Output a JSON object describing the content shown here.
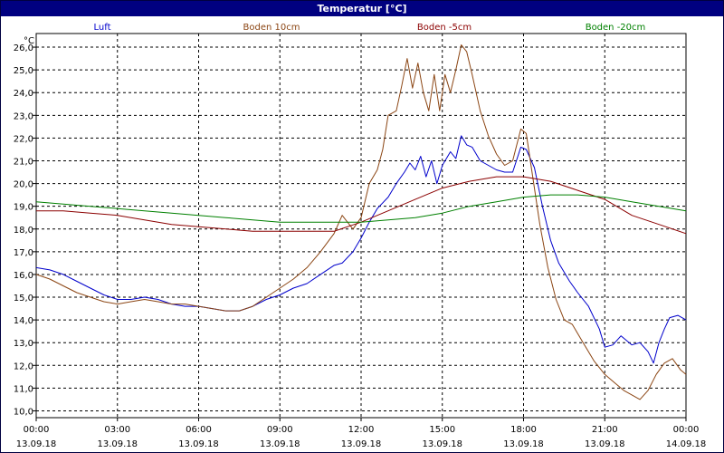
{
  "window": {
    "title": "Temperatur [°C]"
  },
  "chart_data": {
    "type": "line",
    "title": "Temperatur [°C]",
    "ylabel": "°C",
    "xlabel": "",
    "ylim": [
      9.7,
      26.6
    ],
    "xlim": [
      0,
      24
    ],
    "grid": true,
    "y_ticks": [
      10.0,
      11.0,
      12.0,
      13.0,
      14.0,
      15.0,
      16.0,
      17.0,
      18.0,
      19.0,
      20.0,
      21.0,
      22.0,
      23.0,
      24.0,
      25.0,
      26.0
    ],
    "y_tick_labels": [
      "10,0",
      "11,0",
      "12,0",
      "13,0",
      "14,0",
      "15,0",
      "16,0",
      "17,0",
      "18,0",
      "19,0",
      "20,0",
      "21,0",
      "22,0",
      "23,0",
      "24,0",
      "25,0",
      "26,0"
    ],
    "x_ticks": [
      0,
      3,
      6,
      9,
      12,
      15,
      18,
      21,
      24
    ],
    "x_tick_labels": [
      {
        "time": "00:00",
        "date": "13.09.18"
      },
      {
        "time": "03:00",
        "date": "13.09.18"
      },
      {
        "time": "06:00",
        "date": "13.09.18"
      },
      {
        "time": "09:00",
        "date": "13.09.18"
      },
      {
        "time": "12:00",
        "date": "13.09.18"
      },
      {
        "time": "15:00",
        "date": "13.09.18"
      },
      {
        "time": "18:00",
        "date": "13.09.18"
      },
      {
        "time": "21:00",
        "date": "13.09.18"
      },
      {
        "time": "00:00",
        "date": "14.09.18"
      }
    ],
    "legend_position": "top",
    "series": [
      {
        "name": "Luft",
        "color": "#0000cc",
        "points": [
          [
            0,
            16.3
          ],
          [
            0.5,
            16.2
          ],
          [
            1,
            16.0
          ],
          [
            1.5,
            15.7
          ],
          [
            2,
            15.4
          ],
          [
            2.5,
            15.1
          ],
          [
            3,
            14.9
          ],
          [
            3.5,
            14.9
          ],
          [
            4,
            15.0
          ],
          [
            4.5,
            14.9
          ],
          [
            5,
            14.7
          ],
          [
            5.5,
            14.6
          ],
          [
            6,
            14.6
          ],
          [
            6.5,
            14.5
          ],
          [
            7,
            14.4
          ],
          [
            7.5,
            14.4
          ],
          [
            8,
            14.6
          ],
          [
            8.5,
            14.9
          ],
          [
            9,
            15.1
          ],
          [
            9.5,
            15.4
          ],
          [
            10,
            15.6
          ],
          [
            10.5,
            16.0
          ],
          [
            11,
            16.4
          ],
          [
            11.3,
            16.5
          ],
          [
            11.7,
            17.0
          ],
          [
            12,
            17.6
          ],
          [
            12.3,
            18.3
          ],
          [
            12.6,
            18.9
          ],
          [
            13,
            19.4
          ],
          [
            13.3,
            20.0
          ],
          [
            13.6,
            20.5
          ],
          [
            13.8,
            20.9
          ],
          [
            14,
            20.6
          ],
          [
            14.2,
            21.2
          ],
          [
            14.4,
            20.3
          ],
          [
            14.6,
            21.0
          ],
          [
            14.8,
            20.0
          ],
          [
            15,
            20.8
          ],
          [
            15.3,
            21.4
          ],
          [
            15.5,
            21.1
          ],
          [
            15.7,
            22.1
          ],
          [
            15.9,
            21.7
          ],
          [
            16.1,
            21.6
          ],
          [
            16.4,
            21.0
          ],
          [
            16.7,
            20.8
          ],
          [
            17,
            20.6
          ],
          [
            17.3,
            20.5
          ],
          [
            17.6,
            20.5
          ],
          [
            17.9,
            21.6
          ],
          [
            18.1,
            21.5
          ],
          [
            18.4,
            20.7
          ],
          [
            18.7,
            19.0
          ],
          [
            19,
            17.5
          ],
          [
            19.3,
            16.5
          ],
          [
            19.7,
            15.7
          ],
          [
            20,
            15.2
          ],
          [
            20.4,
            14.6
          ],
          [
            20.8,
            13.6
          ],
          [
            21,
            12.8
          ],
          [
            21.3,
            12.9
          ],
          [
            21.6,
            13.3
          ],
          [
            22,
            12.9
          ],
          [
            22.3,
            13.0
          ],
          [
            22.6,
            12.6
          ],
          [
            22.8,
            12.1
          ],
          [
            23,
            13.0
          ],
          [
            23.2,
            13.6
          ],
          [
            23.4,
            14.1
          ],
          [
            23.7,
            14.2
          ],
          [
            24,
            14.0
          ]
        ]
      },
      {
        "name": "Boden 10cm",
        "color": "#8b4513",
        "points": [
          [
            0,
            16.0
          ],
          [
            0.5,
            15.8
          ],
          [
            1,
            15.5
          ],
          [
            1.5,
            15.2
          ],
          [
            2,
            15.0
          ],
          [
            2.5,
            14.8
          ],
          [
            3,
            14.7
          ],
          [
            3.5,
            14.8
          ],
          [
            4,
            14.9
          ],
          [
            4.5,
            14.8
          ],
          [
            5,
            14.7
          ],
          [
            5.5,
            14.7
          ],
          [
            6,
            14.6
          ],
          [
            6.5,
            14.5
          ],
          [
            7,
            14.4
          ],
          [
            7.5,
            14.4
          ],
          [
            8,
            14.6
          ],
          [
            8.5,
            15.0
          ],
          [
            9,
            15.4
          ],
          [
            9.5,
            15.8
          ],
          [
            10,
            16.3
          ],
          [
            10.5,
            17.0
          ],
          [
            11,
            17.8
          ],
          [
            11.3,
            18.6
          ],
          [
            11.7,
            18.0
          ],
          [
            12,
            18.5
          ],
          [
            12.3,
            20.0
          ],
          [
            12.6,
            20.6
          ],
          [
            12.8,
            21.5
          ],
          [
            13,
            23.0
          ],
          [
            13.3,
            23.2
          ],
          [
            13.5,
            24.3
          ],
          [
            13.7,
            25.5
          ],
          [
            13.9,
            24.2
          ],
          [
            14.1,
            25.3
          ],
          [
            14.3,
            24.0
          ],
          [
            14.5,
            23.2
          ],
          [
            14.7,
            24.8
          ],
          [
            14.9,
            23.2
          ],
          [
            15.1,
            24.8
          ],
          [
            15.3,
            24.0
          ],
          [
            15.5,
            25.0
          ],
          [
            15.7,
            26.1
          ],
          [
            15.9,
            25.8
          ],
          [
            16.1,
            24.8
          ],
          [
            16.4,
            23.2
          ],
          [
            16.7,
            22.1
          ],
          [
            17,
            21.3
          ],
          [
            17.3,
            20.8
          ],
          [
            17.6,
            21.0
          ],
          [
            17.9,
            22.4
          ],
          [
            18.1,
            22.2
          ],
          [
            18.3,
            20.6
          ],
          [
            18.6,
            18.2
          ],
          [
            18.9,
            16.3
          ],
          [
            19.2,
            14.9
          ],
          [
            19.5,
            14.0
          ],
          [
            19.8,
            13.8
          ],
          [
            20.2,
            13.0
          ],
          [
            20.6,
            12.2
          ],
          [
            21,
            11.6
          ],
          [
            21.4,
            11.2
          ],
          [
            21.7,
            10.9
          ],
          [
            22,
            10.7
          ],
          [
            22.3,
            10.5
          ],
          [
            22.6,
            10.9
          ],
          [
            22.9,
            11.6
          ],
          [
            23.2,
            12.1
          ],
          [
            23.5,
            12.3
          ],
          [
            23.8,
            11.8
          ],
          [
            24,
            11.6
          ]
        ]
      },
      {
        "name": "Boden -5cm",
        "color": "#8b0000",
        "points": [
          [
            0,
            18.8
          ],
          [
            1,
            18.8
          ],
          [
            2,
            18.7
          ],
          [
            3,
            18.6
          ],
          [
            4,
            18.4
          ],
          [
            5,
            18.2
          ],
          [
            6,
            18.1
          ],
          [
            7,
            18.0
          ],
          [
            8,
            17.9
          ],
          [
            9,
            17.9
          ],
          [
            10,
            17.9
          ],
          [
            11,
            17.9
          ],
          [
            12,
            18.3
          ],
          [
            13,
            18.8
          ],
          [
            14,
            19.3
          ],
          [
            15,
            19.8
          ],
          [
            16,
            20.1
          ],
          [
            17,
            20.3
          ],
          [
            18,
            20.3
          ],
          [
            19,
            20.1
          ],
          [
            20,
            19.7
          ],
          [
            21,
            19.3
          ],
          [
            22,
            18.6
          ],
          [
            23,
            18.2
          ],
          [
            24,
            17.8
          ]
        ]
      },
      {
        "name": "Boden -20cm",
        "color": "#008000",
        "points": [
          [
            0,
            19.2
          ],
          [
            1,
            19.1
          ],
          [
            2,
            19.0
          ],
          [
            3,
            18.9
          ],
          [
            4,
            18.8
          ],
          [
            5,
            18.7
          ],
          [
            6,
            18.6
          ],
          [
            7,
            18.5
          ],
          [
            8,
            18.4
          ],
          [
            9,
            18.3
          ],
          [
            10,
            18.3
          ],
          [
            11,
            18.3
          ],
          [
            12,
            18.3
          ],
          [
            13,
            18.4
          ],
          [
            14,
            18.5
          ],
          [
            15,
            18.7
          ],
          [
            16,
            19.0
          ],
          [
            17,
            19.2
          ],
          [
            18,
            19.4
          ],
          [
            19,
            19.5
          ],
          [
            20,
            19.5
          ],
          [
            21,
            19.4
          ],
          [
            22,
            19.2
          ],
          [
            23,
            19.0
          ],
          [
            24,
            18.8
          ]
        ]
      }
    ]
  }
}
